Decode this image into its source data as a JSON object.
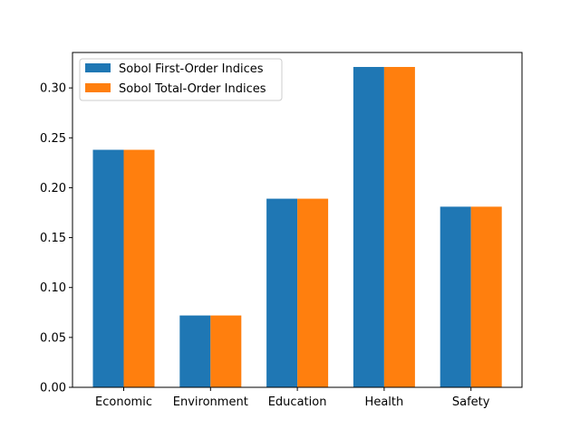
{
  "chart_data": {
    "type": "bar",
    "title": "",
    "xlabel": "",
    "ylabel": "",
    "categories": [
      "Economic",
      "Environment",
      "Education",
      "Health",
      "Safety"
    ],
    "series": [
      {
        "name": "Sobol First-Order Indices",
        "color": "#1f77b4",
        "values": [
          0.238,
          0.072,
          0.189,
          0.321,
          0.181
        ]
      },
      {
        "name": "Sobol Total-Order Indices",
        "color": "#ff7f0e",
        "values": [
          0.238,
          0.072,
          0.189,
          0.321,
          0.181
        ]
      }
    ],
    "ylim": [
      0,
      0.3355
    ],
    "yticks": [
      0.0,
      0.05,
      0.1,
      0.15,
      0.2,
      0.25,
      0.3
    ],
    "ytick_labels": [
      "0.00",
      "0.05",
      "0.10",
      "0.15",
      "0.20",
      "0.25",
      "0.30"
    ],
    "grid": false,
    "legend_position": "top-left"
  }
}
